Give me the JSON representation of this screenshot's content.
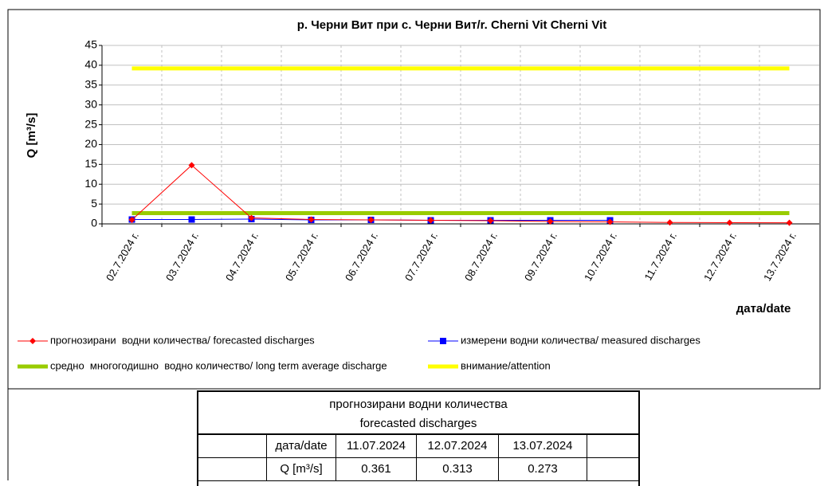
{
  "chart_data": {
    "type": "line",
    "title": "р. Черни Вит при с. Черни Вит/r. Cherni Vit Cherni Vit",
    "y_label": "Q [m³/s]",
    "x_label": "дата/date",
    "categories": [
      "02.7.2024 г.",
      "03.7.2024 г.",
      "04.7.2024 г.",
      "05.7.2024 г.",
      "06.7.2024 г.",
      "07.7.2024 г.",
      "08.7.2024 г.",
      "09.7.2024 г.",
      "10.7.2024 г.",
      "11.7.2024 г.",
      "12.7.2024 г.",
      "13.7.2024 г."
    ],
    "series": [
      {
        "name": "прогнозирани  водни количества/ forecasted discharges",
        "color": "#ff0000",
        "marker": "diamond",
        "values": [
          1.0,
          14.8,
          1.5,
          1.1,
          1.0,
          0.9,
          0.8,
          0.6,
          0.5,
          0.361,
          0.313,
          0.273
        ]
      },
      {
        "name": "измерени водни количества/ measured discharges",
        "color": "#0000ff",
        "marker": "square",
        "values": [
          1.1,
          1.1,
          1.2,
          1.0,
          1.0,
          0.9,
          0.9,
          0.9,
          0.9,
          null,
          null,
          null
        ]
      },
      {
        "name": "средно  многогодишно  водно количество/ long term average discharge",
        "color": "#99cc00",
        "marker": null,
        "values": [
          2.7,
          2.7,
          2.7,
          2.7,
          2.7,
          2.7,
          2.7,
          2.7,
          2.7,
          2.7,
          2.7,
          2.7
        ]
      },
      {
        "name": "внимание/attention",
        "color": "#ffff00",
        "marker": null,
        "values": [
          39.2,
          39.2,
          39.2,
          39.2,
          39.2,
          39.2,
          39.2,
          39.2,
          39.2,
          39.2,
          39.2,
          39.2
        ]
      }
    ],
    "ylim": [
      0,
      45
    ],
    "yticks": [
      0,
      5,
      10,
      15,
      20,
      25,
      30,
      35,
      40,
      45
    ],
    "grid": true
  },
  "table": {
    "title": [
      "прогнозирани водни количества",
      "forecasted discharges"
    ],
    "header": [
      "дата/date",
      "11.07.2024",
      "12.07.2024",
      "13.07.2024"
    ],
    "row": [
      "Q [m³/s]",
      "0.361",
      "0.313",
      "0.273"
    ]
  }
}
